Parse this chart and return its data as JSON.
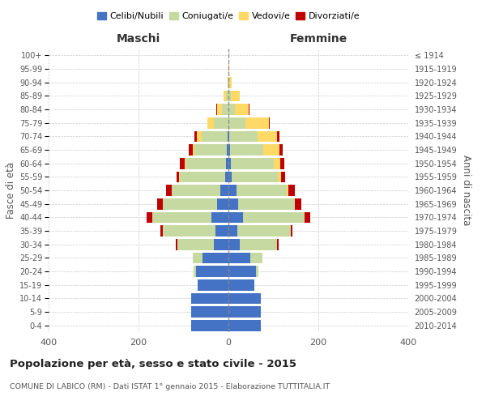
{
  "age_groups": [
    "0-4",
    "5-9",
    "10-14",
    "15-19",
    "20-24",
    "25-29",
    "30-34",
    "35-39",
    "40-44",
    "45-49",
    "50-54",
    "55-59",
    "60-64",
    "65-69",
    "70-74",
    "75-79",
    "80-84",
    "85-89",
    "90-94",
    "95-99",
    "100+"
  ],
  "birth_years": [
    "2010-2014",
    "2005-2009",
    "2000-2004",
    "1995-1999",
    "1990-1994",
    "1985-1989",
    "1980-1984",
    "1975-1979",
    "1970-1974",
    "1965-1969",
    "1960-1964",
    "1955-1959",
    "1950-1954",
    "1945-1949",
    "1940-1944",
    "1935-1939",
    "1930-1934",
    "1925-1929",
    "1920-1924",
    "1915-1919",
    "≤ 1914"
  ],
  "male": {
    "celibi": [
      82,
      82,
      82,
      68,
      72,
      58,
      32,
      28,
      38,
      26,
      18,
      8,
      5,
      3,
      2,
      0,
      0,
      0,
      0,
      0,
      0
    ],
    "coniugati": [
      0,
      0,
      0,
      0,
      5,
      22,
      82,
      118,
      132,
      120,
      108,
      100,
      90,
      72,
      58,
      32,
      15,
      5,
      2,
      0,
      0
    ],
    "vedovi": [
      0,
      0,
      0,
      0,
      0,
      0,
      0,
      0,
      0,
      0,
      0,
      2,
      3,
      5,
      10,
      15,
      10,
      5,
      0,
      0,
      0
    ],
    "divorziati": [
      0,
      0,
      0,
      0,
      0,
      0,
      3,
      5,
      12,
      12,
      12,
      5,
      10,
      8,
      5,
      0,
      2,
      0,
      0,
      0,
      0
    ]
  },
  "female": {
    "nubili": [
      72,
      72,
      72,
      58,
      62,
      48,
      26,
      20,
      32,
      22,
      18,
      8,
      5,
      3,
      2,
      0,
      0,
      0,
      0,
      0,
      0
    ],
    "coniugate": [
      0,
      0,
      0,
      0,
      5,
      28,
      82,
      118,
      138,
      125,
      112,
      102,
      95,
      75,
      62,
      38,
      15,
      5,
      2,
      0,
      0
    ],
    "vedove": [
      0,
      0,
      0,
      0,
      0,
      0,
      0,
      0,
      0,
      0,
      3,
      8,
      15,
      35,
      45,
      52,
      30,
      20,
      5,
      2,
      0
    ],
    "divorziate": [
      0,
      0,
      0,
      0,
      0,
      0,
      3,
      5,
      12,
      15,
      15,
      8,
      10,
      8,
      5,
      2,
      2,
      0,
      0,
      0,
      0
    ]
  },
  "colors": {
    "celibi_nubili": "#4472C4",
    "coniugati": "#C5D9A0",
    "vedovi": "#FFD966",
    "divorziati": "#C00000"
  },
  "title": "Popolazione per età, sesso e stato civile - 2015",
  "subtitle": "COMUNE DI LABICO (RM) - Dati ISTAT 1° gennaio 2015 - Elaborazione TUTTITALIA.IT",
  "xlabel_left": "Maschi",
  "xlabel_right": "Femmine",
  "ylabel_left": "Fasce di età",
  "ylabel_right": "Anni di nascita",
  "xlim": 400,
  "legend_labels": [
    "Celibi/Nubili",
    "Coniugati/e",
    "Vedovi/e",
    "Divorziati/e"
  ],
  "background_color": "#ffffff",
  "grid_color": "#cccccc"
}
